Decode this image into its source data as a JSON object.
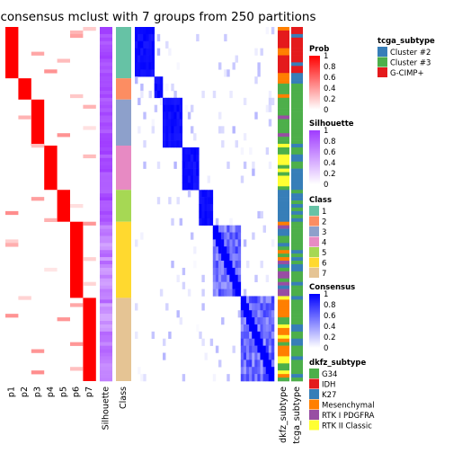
{
  "chart_data": {
    "type": "heatmap",
    "title": "consensus mclust with 7 groups from 250 partitions",
    "membership_columns": [
      "p1",
      "p2",
      "p3",
      "p4",
      "p5",
      "p6",
      "p7"
    ],
    "silhouette_label": "Silhouette",
    "class_label": "Class",
    "annotation_columns": [
      "dkfz_subtype",
      "tcga_subtype"
    ],
    "class_blocks": [
      {
        "class": "1",
        "start": 0.0,
        "end": 0.145
      },
      {
        "class": "2",
        "start": 0.145,
        "end": 0.205
      },
      {
        "class": "3",
        "start": 0.205,
        "end": 0.335
      },
      {
        "class": "4",
        "start": 0.335,
        "end": 0.46
      },
      {
        "class": "5",
        "start": 0.46,
        "end": 0.55
      },
      {
        "class": "6",
        "start": 0.55,
        "end": 0.765
      },
      {
        "class": "7",
        "start": 0.765,
        "end": 1.0
      }
    ],
    "legends": {
      "prob": {
        "title": "Prob",
        "ticks": [
          "1",
          "0.8",
          "0.6",
          "0.4",
          "0.2",
          "0"
        ],
        "low": "#ffffff",
        "high": "#ff0000"
      },
      "silhouette": {
        "title": "Silhouette",
        "ticks": [
          "1",
          "0.8",
          "0.6",
          "0.4",
          "0.2",
          "0"
        ],
        "low": "#ffffff",
        "high": "#9f3bff"
      },
      "class": {
        "title": "Class",
        "items": [
          {
            "label": "1",
            "color": "#66C2A5"
          },
          {
            "label": "2",
            "color": "#FC8D62"
          },
          {
            "label": "3",
            "color": "#8DA0CB"
          },
          {
            "label": "4",
            "color": "#E78AC3"
          },
          {
            "label": "5",
            "color": "#A6D854"
          },
          {
            "label": "6",
            "color": "#FFD92F"
          },
          {
            "label": "7",
            "color": "#E5C494"
          }
        ]
      },
      "consensus": {
        "title": "Consensus",
        "ticks": [
          "1",
          "0.8",
          "0.6",
          "0.4",
          "0.2",
          "0"
        ],
        "low": "#ffffff",
        "high": "#0000ff"
      },
      "tcga_subtype": {
        "title": "tcga_subtype",
        "items": [
          {
            "label": "Cluster #2",
            "color": "#377EB8"
          },
          {
            "label": "Cluster #3",
            "color": "#4DAF4A"
          },
          {
            "label": "G-CIMP+",
            "color": "#E41A1C"
          }
        ]
      },
      "dkfz_subtype": {
        "title": "dkfz_subtype",
        "items": [
          {
            "label": "G34",
            "color": "#4DAF4A"
          },
          {
            "label": "IDH",
            "color": "#E41A1C"
          },
          {
            "label": "K27",
            "color": "#377EB8"
          },
          {
            "label": "Mesenchymal",
            "color": "#FF7F00"
          },
          {
            "label": "RTK I PDGFRA",
            "color": "#984EA3"
          },
          {
            "label": "RTK II Classic",
            "color": "#FFFF33"
          }
        ]
      }
    }
  }
}
